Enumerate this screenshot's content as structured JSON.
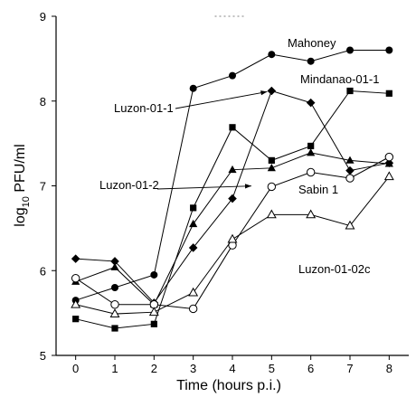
{
  "chart_data": {
    "type": "line",
    "xlabel": "Time (hours p.i.)",
    "ylabel": "log10 PFU/ml",
    "ylabel_parts": {
      "prefix": "log",
      "sub": "10",
      "suffix": " PFU/ml"
    },
    "xlim": [
      -0.5,
      8.5
    ],
    "ylim": [
      5,
      9
    ],
    "xticks": [
      0,
      1,
      2,
      3,
      4,
      5,
      6,
      7,
      8
    ],
    "yticks": [
      5,
      6,
      7,
      8,
      9
    ],
    "grid": false,
    "legend": "none",
    "x": [
      0,
      1,
      2,
      3,
      4,
      5,
      6,
      7,
      8
    ],
    "series": [
      {
        "name": "Mahoney",
        "marker": "filled-circle",
        "values": [
          5.65,
          5.8,
          5.95,
          8.15,
          8.3,
          8.55,
          8.47,
          8.6,
          8.6
        ]
      },
      {
        "name": "Mindanao-01-1",
        "marker": "filled-square",
        "values": [
          5.43,
          5.32,
          5.37,
          6.74,
          7.69,
          7.3,
          7.47,
          8.12,
          8.09
        ]
      },
      {
        "name": "Luzon-01-1",
        "marker": "filled-diamond",
        "values": [
          6.14,
          6.11,
          5.62,
          6.27,
          6.85,
          8.12,
          7.98,
          7.18,
          7.27
        ]
      },
      {
        "name": "Luzon-01-2",
        "marker": "filled-triangle",
        "values": [
          5.87,
          6.04,
          5.6,
          6.55,
          7.19,
          7.21,
          7.39,
          7.3,
          7.26
        ]
      },
      {
        "name": "Sabin 1",
        "marker": "open-circle",
        "values": [
          5.91,
          5.6,
          5.6,
          5.55,
          6.3,
          6.99,
          7.16,
          7.09,
          7.34
        ]
      },
      {
        "name": "Luzon-01-02c",
        "marker": "open-triangle",
        "values": [
          5.6,
          5.49,
          5.51,
          5.74,
          6.37,
          6.66,
          6.66,
          6.53,
          7.11
        ]
      }
    ],
    "annotations": [
      {
        "text": "Mahoney",
        "series": "Mahoney"
      },
      {
        "text": "Mindanao-01-1",
        "series": "Mindanao-01-1"
      },
      {
        "text": "Luzon-01-1",
        "series": "Luzon-01-1",
        "pointer_to": {
          "x": 5,
          "y": 8.12
        }
      },
      {
        "text": "Luzon-01-2",
        "series": "Luzon-01-2",
        "pointer_to": {
          "x": 4.6,
          "y": 7.0
        }
      },
      {
        "text": "Sabin 1",
        "series": "Sabin 1"
      },
      {
        "text": "Luzon-01-02c",
        "series": "Luzon-01-02c"
      }
    ]
  }
}
